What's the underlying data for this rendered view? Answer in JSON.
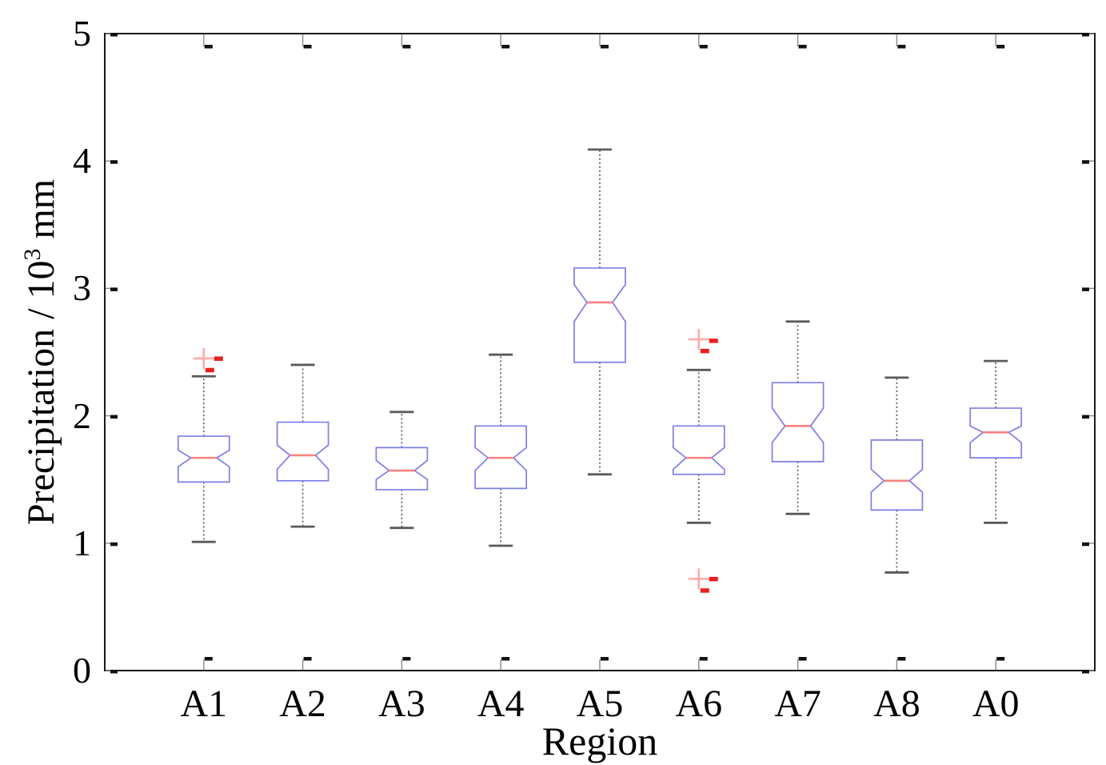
{
  "chart_data": {
    "type": "boxplot",
    "title": "",
    "xlabel": "Region",
    "ylabel": "Precipitation / 10^3 mm",
    "ylabel_parts": {
      "base": "Precipitation / 10",
      "exp": "3",
      "unit": " mm"
    },
    "categories": [
      "A1",
      "A2",
      "A3",
      "A4",
      "A5",
      "A6",
      "A7",
      "A8",
      "A0"
    ],
    "ytick_labels": [
      "0",
      "1",
      "2",
      "3",
      "4",
      "5"
    ],
    "ytick_values": [
      0,
      1,
      2,
      3,
      4,
      5
    ],
    "ylim": [
      0,
      5
    ],
    "xlim": [
      0,
      10
    ],
    "grid": false,
    "legend": "none",
    "notched": true,
    "series": [
      {
        "label": "A1",
        "whisker_low": 1.01,
        "q1": 1.48,
        "median": 1.67,
        "q3": 1.84,
        "whisker_high": 2.31,
        "notch_low": 1.6,
        "notch_high": 1.73,
        "outliers": [
          {
            "value": 2.45,
            "marker": "plus",
            "dx": 0
          },
          {
            "value": 2.45,
            "marker": "dash",
            "dx": 14
          },
          {
            "value": 2.36,
            "marker": "dash",
            "dx": 3
          }
        ]
      },
      {
        "label": "A2",
        "whisker_low": 1.13,
        "q1": 1.49,
        "median": 1.69,
        "q3": 1.95,
        "whisker_high": 2.4,
        "notch_low": 1.58,
        "notch_high": 1.77,
        "outliers": []
      },
      {
        "label": "A3",
        "whisker_low": 1.12,
        "q1": 1.42,
        "median": 1.57,
        "q3": 1.75,
        "whisker_high": 2.03,
        "notch_low": 1.5,
        "notch_high": 1.65,
        "outliers": []
      },
      {
        "label": "A4",
        "whisker_low": 0.98,
        "q1": 1.43,
        "median": 1.67,
        "q3": 1.92,
        "whisker_high": 2.48,
        "notch_low": 1.57,
        "notch_high": 1.75,
        "outliers": []
      },
      {
        "label": "A5",
        "whisker_low": 1.54,
        "q1": 2.42,
        "median": 2.89,
        "q3": 3.16,
        "whisker_high": 4.09,
        "notch_low": 2.74,
        "notch_high": 3.03,
        "outliers": []
      },
      {
        "label": "A6",
        "whisker_low": 1.16,
        "q1": 1.54,
        "median": 1.67,
        "q3": 1.92,
        "whisker_high": 2.36,
        "notch_low": 1.58,
        "notch_high": 1.75,
        "outliers": [
          {
            "value": 2.6,
            "marker": "plus",
            "dx": 0
          },
          {
            "value": 2.59,
            "marker": "dash",
            "dx": 14
          },
          {
            "value": 2.51,
            "marker": "dash",
            "dx": 3
          },
          {
            "value": 0.72,
            "marker": "plus",
            "dx": 0
          },
          {
            "value": 0.72,
            "marker": "dash",
            "dx": 14
          },
          {
            "value": 0.63,
            "marker": "dash",
            "dx": 3
          }
        ]
      },
      {
        "label": "A7",
        "whisker_low": 1.23,
        "q1": 1.64,
        "median": 1.92,
        "q3": 2.26,
        "whisker_high": 2.74,
        "notch_low": 1.79,
        "notch_high": 2.06,
        "outliers": []
      },
      {
        "label": "A8",
        "whisker_low": 0.77,
        "q1": 1.26,
        "median": 1.49,
        "q3": 1.81,
        "whisker_high": 2.3,
        "notch_low": 1.4,
        "notch_high": 1.58,
        "outliers": []
      },
      {
        "label": "A0",
        "whisker_low": 1.16,
        "q1": 1.67,
        "median": 1.87,
        "q3": 2.06,
        "whisker_high": 2.43,
        "notch_low": 1.79,
        "notch_high": 1.92,
        "outliers": []
      }
    ],
    "colors": {
      "box_edge": "#7d7de8",
      "median": "#f88080",
      "whisker": "#555555",
      "cap": "#5a5a5a",
      "outlier_plus": "#ffaaaa",
      "outlier_dash": "#e82020",
      "frame": "#1a1a1a",
      "tick": "#111111",
      "text": "#000000",
      "background": "#ffffff"
    }
  }
}
